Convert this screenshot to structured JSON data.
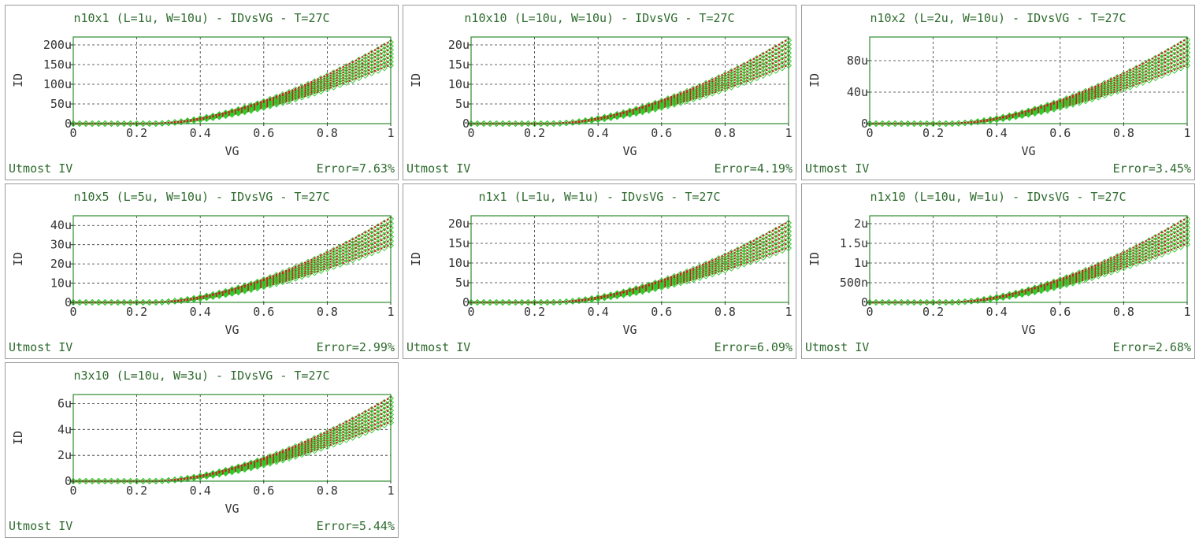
{
  "colors": {
    "measured": "#2ecc2e",
    "simulated": "#cc1f1f",
    "frame": "#2e8b2e",
    "text_green": "#2e6b2e"
  },
  "chart_data": [
    {
      "type": "scatter",
      "title": "n10x1 (L=1u, W=10u) - IDvsVG - T=27C",
      "xlabel": "VG",
      "ylabel": "ID",
      "xticks": [
        "0",
        "0.2",
        "0.4",
        "0.6",
        "0.8",
        "1"
      ],
      "yticks": [
        "0",
        "50u",
        "100u",
        "150u",
        "200u"
      ],
      "ytick_values": [
        0,
        5e-05,
        0.0001,
        0.00015,
        0.0002
      ],
      "xlim": [
        0,
        1
      ],
      "ylim": [
        0,
        0.00022
      ],
      "vt": 0.25,
      "curve_max": [
        0.00015,
        0.00021
      ],
      "grid": true,
      "model_label": "Utmost IV",
      "error": "Error=7.63%"
    },
    {
      "type": "scatter",
      "title": "n10x10 (L=10u, W=10u) - IDvsVG - T=27C",
      "xlabel": "VG",
      "ylabel": "ID",
      "xticks": [
        "0",
        "0.2",
        "0.4",
        "0.6",
        "0.8",
        "1"
      ],
      "yticks": [
        "0",
        "5u",
        "10u",
        "15u",
        "20u"
      ],
      "ytick_values": [
        0,
        5e-06,
        1e-05,
        1.5e-05,
        2e-05
      ],
      "xlim": [
        0,
        1
      ],
      "ylim": [
        0,
        2.2e-05
      ],
      "vt": 0.25,
      "curve_max": [
        1.5e-05,
        2.15e-05
      ],
      "grid": true,
      "model_label": "Utmost IV",
      "error": "Error=4.19%"
    },
    {
      "type": "scatter",
      "title": "n10x2 (L=2u, W=10u) - IDvsVG - T=27C",
      "xlabel": "VG",
      "ylabel": "ID",
      "xticks": [
        "0",
        "0.2",
        "0.4",
        "0.6",
        "0.8",
        "1"
      ],
      "yticks": [
        "0",
        "40u",
        "80u"
      ],
      "ytick_values": [
        0,
        4e-05,
        8e-05
      ],
      "xlim": [
        0,
        1
      ],
      "ylim": [
        0,
        0.00011
      ],
      "vt": 0.25,
      "curve_max": [
        7.5e-05,
        0.000108
      ],
      "grid": true,
      "model_label": "Utmost IV",
      "error": "Error=3.45%"
    },
    {
      "type": "scatter",
      "title": "n10x5 (L=5u, W=10u) - IDvsVG - T=27C",
      "xlabel": "VG",
      "ylabel": "ID",
      "xticks": [
        "0",
        "0.2",
        "0.4",
        "0.6",
        "0.8",
        "1"
      ],
      "yticks": [
        "0",
        "10u",
        "20u",
        "30u",
        "40u"
      ],
      "ytick_values": [
        0,
        1e-05,
        2e-05,
        3e-05,
        4e-05
      ],
      "xlim": [
        0,
        1
      ],
      "ylim": [
        0,
        4.5e-05
      ],
      "vt": 0.25,
      "curve_max": [
        3e-05,
        4.4e-05
      ],
      "grid": true,
      "model_label": "Utmost IV",
      "error": "Error=2.99%"
    },
    {
      "type": "scatter",
      "title": "n1x1 (L=1u, W=1u) - IDvsVG - T=27C",
      "xlabel": "VG",
      "ylabel": "ID",
      "xticks": [
        "0",
        "0.2",
        "0.4",
        "0.6",
        "0.8",
        "1"
      ],
      "yticks": [
        "0",
        "5u",
        "10u",
        "15u",
        "20u"
      ],
      "ytick_values": [
        0,
        5e-06,
        1e-05,
        1.5e-05,
        2e-05
      ],
      "xlim": [
        0,
        1
      ],
      "ylim": [
        0,
        2.2e-05
      ],
      "vt": 0.25,
      "curve_max": [
        1.4e-05,
        2.05e-05
      ],
      "grid": true,
      "model_label": "Utmost IV",
      "error": "Error=6.09%"
    },
    {
      "type": "scatter",
      "title": "n1x10 (L=10u, W=1u) - IDvsVG - T=27C",
      "xlabel": "VG",
      "ylabel": "ID",
      "xticks": [
        "0",
        "0.2",
        "0.4",
        "0.6",
        "0.8",
        "1"
      ],
      "yticks": [
        "0",
        "500n",
        "1u",
        "1.5u",
        "2u"
      ],
      "ytick_values": [
        0,
        5e-07,
        1e-06,
        1.5e-06,
        2e-06
      ],
      "xlim": [
        0,
        1
      ],
      "ylim": [
        0,
        2.2e-06
      ],
      "vt": 0.25,
      "curve_max": [
        1.5e-06,
        2.15e-06
      ],
      "grid": true,
      "model_label": "Utmost IV",
      "error": "Error=2.68%"
    },
    {
      "type": "scatter",
      "title": "n3x10 (L=10u, W=3u) - IDvsVG - T=27C",
      "xlabel": "VG",
      "ylabel": "ID",
      "xticks": [
        "0",
        "0.2",
        "0.4",
        "0.6",
        "0.8",
        "1"
      ],
      "yticks": [
        "0",
        "2u",
        "4u",
        "6u"
      ],
      "ytick_values": [
        0,
        2e-06,
        4e-06,
        6e-06
      ],
      "xlim": [
        0,
        1
      ],
      "ylim": [
        0,
        6.7e-06
      ],
      "vt": 0.25,
      "curve_max": [
        4.6e-06,
        6.5e-06
      ],
      "grid": true,
      "model_label": "Utmost IV",
      "error": "Error=5.44%"
    }
  ]
}
